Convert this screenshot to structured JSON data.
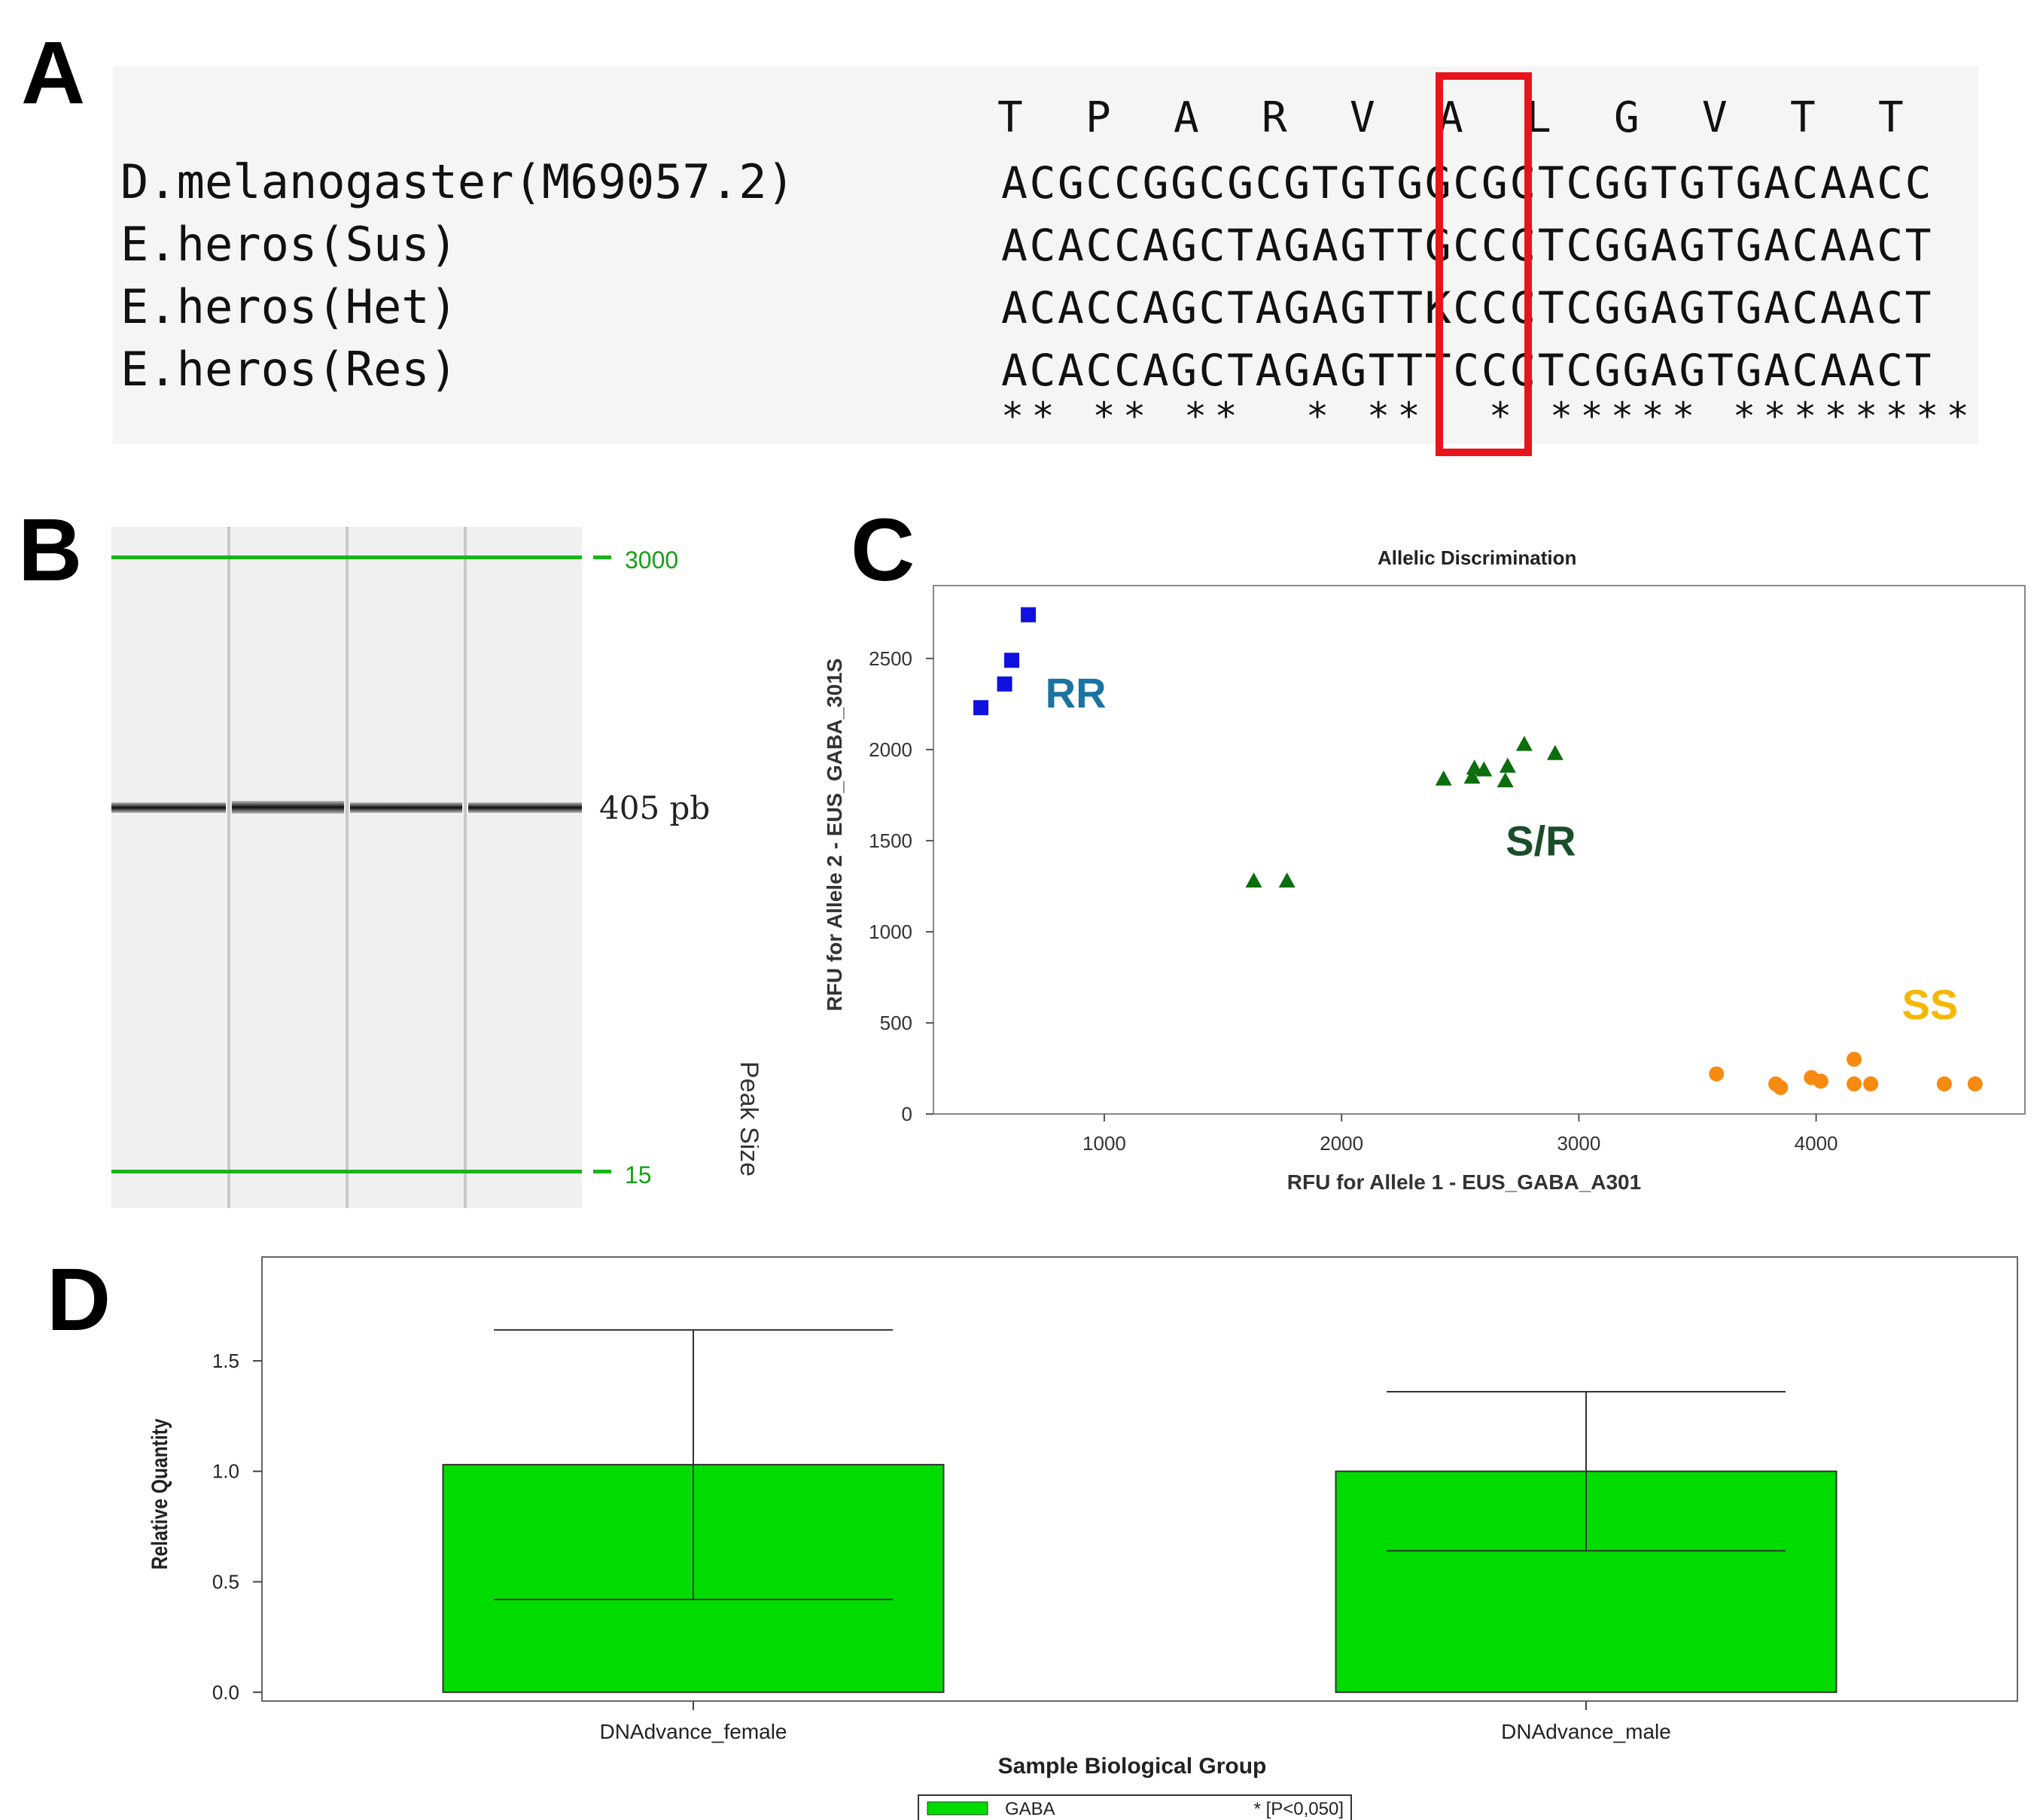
{
  "panel_labels": {
    "a": "A",
    "b": "B",
    "c": "C",
    "d": "D"
  },
  "alignment": {
    "aa_sequence": [
      "T",
      "P",
      "A",
      "R",
      "V",
      "A",
      "L",
      "G",
      "V",
      "T",
      "T"
    ],
    "rows": [
      {
        "name": "D.melanogaster(M69057.2)",
        "seq": "ACGCCGGCGCGTGTGGCGCTCGGTGTGACAACC"
      },
      {
        "name": "E.heros(Sus)",
        "seq": "ACACCAGCTAGAGTTGCCCTCGGAGTGACAACT"
      },
      {
        "name": "E.heros(Het)",
        "seq": "ACACCAGCTAGAGTTKCCCTCGGAGTGACAACT"
      },
      {
        "name": "E.heros(Res)",
        "seq": "ACACCAGCTAGAGTTTCCCTCGGAGTGACAACT"
      }
    ],
    "conservation": "** ** **  * **  * ***** ********",
    "highlight_codon_index": 5,
    "highlight_color": "#e8141c",
    "background": "#f5f5f5"
  },
  "gel": {
    "size_labels": {
      "top": "3000",
      "bottom": "15"
    },
    "band_label": "405 pb",
    "axis_label": "Peak Size",
    "marker_color": "#18b418",
    "lanes": 4
  },
  "chart_data": [
    {
      "type": "scatter",
      "title": "Allelic Discrimination",
      "xlabel": "RFU for Allele 1 - EUS_GABA_A301",
      "ylabel": "RFU for Allele 2 - EUS_GABA_301S",
      "xlim": [
        280,
        4880
      ],
      "ylim": [
        0,
        2900
      ],
      "xticks": [
        1000,
        2000,
        3000,
        4000
      ],
      "yticks": [
        0,
        500,
        1000,
        1500,
        2000,
        2500
      ],
      "series": [
        {
          "name": "RR",
          "marker": "square",
          "color": "#1010e0",
          "label_color": "#1a73a0",
          "points": [
            [
              480,
              2230
            ],
            [
              580,
              2360
            ],
            [
              610,
              2490
            ],
            [
              680,
              2740
            ]
          ]
        },
        {
          "name": "S/R",
          "marker": "triangle",
          "color": "#0c6e0c",
          "label_color": "#1a4d2a",
          "points": [
            [
              1630,
              1280
            ],
            [
              1770,
              1280
            ],
            [
              2430,
              1840
            ],
            [
              2550,
              1850
            ],
            [
              2560,
              1900
            ],
            [
              2600,
              1890
            ],
            [
              2690,
              1830
            ],
            [
              2700,
              1910
            ],
            [
              2770,
              2030
            ],
            [
              2900,
              1980
            ]
          ]
        },
        {
          "name": "SS",
          "marker": "circle",
          "color": "#f78a10",
          "label_color": "#f5b800",
          "points": [
            [
              3580,
              220
            ],
            [
              3830,
              165
            ],
            [
              3850,
              145
            ],
            [
              3980,
              200
            ],
            [
              4020,
              180
            ],
            [
              4160,
              300
            ],
            [
              4160,
              165
            ],
            [
              4230,
              165
            ],
            [
              4540,
              165
            ],
            [
              4670,
              165
            ]
          ]
        }
      ],
      "cluster_labels": [
        {
          "text": "RR",
          "at": [
            880,
            2230
          ]
        },
        {
          "text": "S/R",
          "at": [
            2840,
            1420
          ]
        },
        {
          "text": "SS",
          "at": [
            4480,
            520
          ]
        }
      ]
    },
    {
      "type": "bar",
      "title": "",
      "xlabel": "Sample Biological Group",
      "ylabel": "Relative Quantity",
      "ylim": [
        -0.04,
        1.97
      ],
      "yticks": [
        0.0,
        0.5,
        1.0,
        1.5
      ],
      "ytick_labels": [
        "0.0",
        "0.5",
        "1.0",
        "1.5"
      ],
      "categories": [
        "DNAdvance_female",
        "DNAdvance_male"
      ],
      "series": [
        {
          "name": "GABA",
          "color": "#00dc00",
          "values": [
            1.03,
            1.0
          ],
          "err_high": [
            1.64,
            1.36
          ],
          "err_low": [
            0.42,
            0.64
          ]
        }
      ],
      "legend": {
        "label": "GABA",
        "note": "* [P<0,050]",
        "position": "bottom-center"
      }
    }
  ]
}
